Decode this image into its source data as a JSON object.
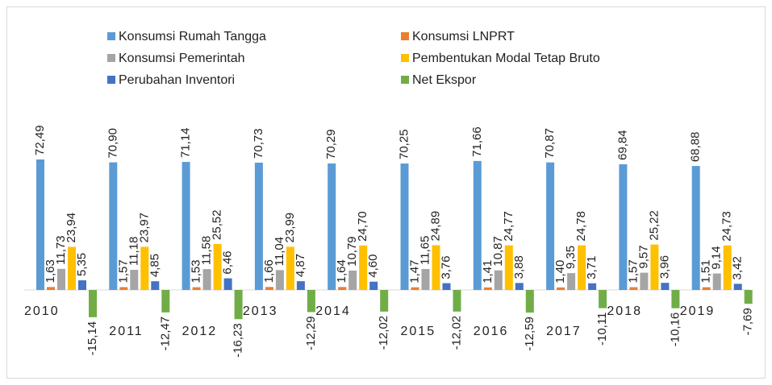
{
  "chart_data": {
    "type": "bar",
    "categories": [
      "2010",
      "2011",
      "2012",
      "2013",
      "2014",
      "2015",
      "2016",
      "2017",
      "2018",
      "2019"
    ],
    "series": [
      {
        "name": "Konsumsi Rumah Tangga",
        "color": "#5b9bd5",
        "label_color": "#2e86c8",
        "values": [
          72.49,
          70.9,
          71.14,
          70.73,
          70.29,
          70.25,
          71.66,
          70.87,
          69.84,
          68.88
        ],
        "value_labels": [
          "72,49",
          "70,90",
          "71,14",
          "70,73",
          "70,29",
          "70,25",
          "71,66",
          "70,87",
          "69,84",
          "68,88"
        ]
      },
      {
        "name": "Konsumsi LNPRT",
        "color": "#ed7d31",
        "label_color": "#d8661e",
        "values": [
          1.63,
          1.57,
          1.53,
          1.66,
          1.64,
          1.47,
          1.41,
          1.4,
          1.57,
          1.51
        ],
        "value_labels": [
          "1,63",
          "1,57",
          "1,53",
          "1,66",
          "1,64",
          "1,47",
          "1,41",
          "1,40",
          "1,57",
          "1,51"
        ]
      },
      {
        "name": "Konsumsi Pemerintah",
        "color": "#a5a5a5",
        "label_color": "#8c8c8c",
        "values": [
          11.73,
          11.18,
          11.58,
          11.04,
          10.79,
          11.65,
          10.87,
          9.35,
          9.57,
          9.14
        ],
        "value_labels": [
          "11,73",
          "11,18",
          "11,58",
          "11,04",
          "10,79",
          "11,65",
          "10,87",
          "9,35",
          "9,57",
          "9,14"
        ]
      },
      {
        "name": "Pembentukan Modal Tetap Bruto",
        "color": "#ffc000",
        "label_color": "#8f7000",
        "values": [
          23.94,
          23.97,
          25.52,
          23.99,
          24.7,
          24.89,
          24.77,
          24.78,
          25.22,
          24.73
        ],
        "value_labels": [
          "23,94",
          "23,97",
          "25,52",
          "23,99",
          "24,70",
          "24,89",
          "24,77",
          "24,78",
          "25,22",
          "24,73"
        ]
      },
      {
        "name": "Perubahan Inventori",
        "color": "#4472c4",
        "label_color": "#1f2d4a",
        "values": [
          5.35,
          4.85,
          6.46,
          4.87,
          4.6,
          3.76,
          3.88,
          3.71,
          3.96,
          3.42
        ],
        "value_labels": [
          "5,35",
          "4,85",
          "6,46",
          "4,87",
          "4,60",
          "3,76",
          "3,88",
          "3,71",
          "3,96",
          "3,42"
        ]
      },
      {
        "name": "Net Ekspor",
        "color": "#70ad47",
        "label_color": "#5a9a32",
        "values": [
          -15.14,
          -12.47,
          -16.23,
          -12.29,
          -12.02,
          -12.02,
          -12.59,
          -10.11,
          -10.16,
          -7.69
        ],
        "value_labels": [
          "-15,14",
          "-12,47",
          "-16,23",
          "-12,29",
          "-12,02",
          "-12,02",
          "-12,59",
          "-10,11",
          "-10,16",
          "-7,69"
        ]
      }
    ]
  }
}
